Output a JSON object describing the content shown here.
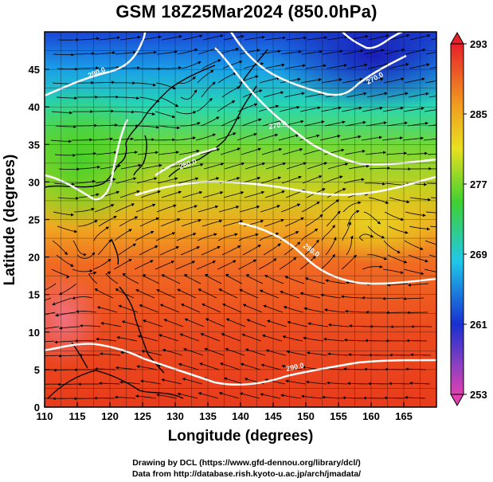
{
  "title": "GSM 18Z25Mar2024 (850.0hPa)",
  "x_axis": {
    "label": "Longitude (degrees)",
    "range": [
      110,
      170
    ],
    "ticks": [
      "110",
      "115",
      "120",
      "125",
      "130",
      "135",
      "140",
      "145",
      "150",
      "155",
      "160",
      "165"
    ]
  },
  "y_axis": {
    "label": "Latitude  (degrees)",
    "range": [
      0,
      50
    ],
    "ticks": [
      "0",
      "5",
      "10",
      "15",
      "20",
      "25",
      "30",
      "35",
      "40",
      "45"
    ]
  },
  "colorbar": {
    "range": [
      253,
      293
    ],
    "labels": [
      "293",
      "285",
      "277",
      "269",
      "261",
      "253"
    ],
    "label_values": [
      293,
      285,
      277,
      269,
      261,
      253
    ]
  },
  "contour_labels": [
    "280.0",
    "270.0",
    "270.0",
    "280.0",
    "280.0",
    "290.0"
  ],
  "credits": {
    "line1": "Drawing by DCL (https://www.gfd-dennou.org/library/dcl/)",
    "line2": "Data from http://database.rish.kyoto-u.ac.jp/arch/jmadata/"
  },
  "map": {
    "type": "temperature-field-with-streamlines",
    "grid": "on",
    "colors": {
      "warm": "#e8401c",
      "mid": "#32c832",
      "cold": "#1440d8",
      "frame": "#000000",
      "contour": "#ffffff"
    }
  }
}
